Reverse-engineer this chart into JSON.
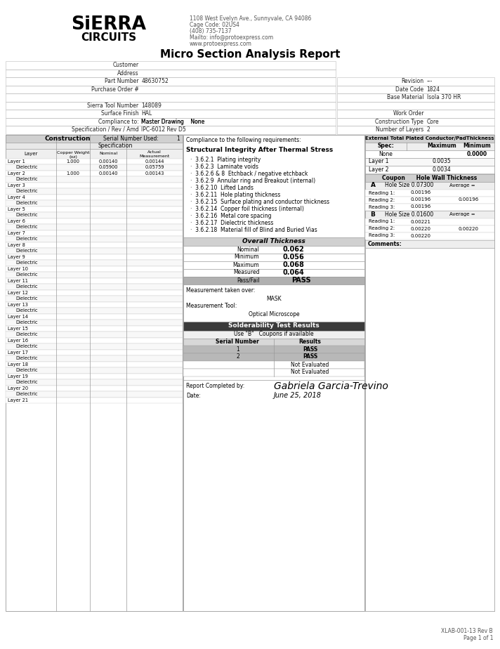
{
  "title": "Micro Section Analysis Report",
  "address_line1": "1108 West Evelyn Ave., Sunnyvale, CA 94086",
  "address_line2": "Cage Code: 02US4",
  "address_line3": "(408) 735-7137",
  "address_line4": "Mailto: info@protoexpress.com",
  "address_line5": "www.protoexpress.com",
  "part_number": "48630752",
  "revision": "---",
  "date_code": "1824",
  "base_material": "Isola 370 HR",
  "sierra_tool_number": "148089",
  "work_order": "",
  "surface_finish": "HAL",
  "construction_type": "Core",
  "compliance_master_drawing": "None",
  "number_of_layers": "2",
  "specification_rev": "IPC-6012 Rev D5",
  "layers": [
    {
      "name": "Layer 1",
      "copper_weight": "1.000",
      "nominal": "0.00140",
      "actual": "0.00144"
    },
    {
      "name": "Dielectric",
      "copper_weight": "",
      "nominal": "0.05900",
      "actual": "0.05759"
    },
    {
      "name": "Layer 2",
      "copper_weight": "1.000",
      "nominal": "0.00140",
      "actual": "0.00143"
    },
    {
      "name": "Dielectric",
      "copper_weight": "",
      "nominal": "",
      "actual": ""
    },
    {
      "name": "Layer 3",
      "copper_weight": "",
      "nominal": "",
      "actual": ""
    },
    {
      "name": "Dielectric",
      "copper_weight": "",
      "nominal": "",
      "actual": ""
    },
    {
      "name": "Layer 4",
      "copper_weight": "",
      "nominal": "",
      "actual": ""
    },
    {
      "name": "Dielectric",
      "copper_weight": "",
      "nominal": "",
      "actual": ""
    },
    {
      "name": "Layer 5",
      "copper_weight": "",
      "nominal": "",
      "actual": ""
    },
    {
      "name": "Dielectric",
      "copper_weight": "",
      "nominal": "",
      "actual": ""
    },
    {
      "name": "Layer 6",
      "copper_weight": "",
      "nominal": "",
      "actual": ""
    },
    {
      "name": "Dielectric",
      "copper_weight": "",
      "nominal": "",
      "actual": ""
    },
    {
      "name": "Layer 7",
      "copper_weight": "",
      "nominal": "",
      "actual": ""
    },
    {
      "name": "Dielectric",
      "copper_weight": "",
      "nominal": "",
      "actual": ""
    },
    {
      "name": "Layer 8",
      "copper_weight": "",
      "nominal": "",
      "actual": ""
    },
    {
      "name": "Dielectric",
      "copper_weight": "",
      "nominal": "",
      "actual": ""
    },
    {
      "name": "Layer 9",
      "copper_weight": "",
      "nominal": "",
      "actual": ""
    },
    {
      "name": "Dielectric",
      "copper_weight": "",
      "nominal": "",
      "actual": ""
    },
    {
      "name": "Layer 10",
      "copper_weight": "",
      "nominal": "",
      "actual": ""
    },
    {
      "name": "Dielectric",
      "copper_weight": "",
      "nominal": "",
      "actual": ""
    },
    {
      "name": "Layer 11",
      "copper_weight": "",
      "nominal": "",
      "actual": ""
    },
    {
      "name": "Dielectric",
      "copper_weight": "",
      "nominal": "",
      "actual": ""
    },
    {
      "name": "Layer 12",
      "copper_weight": "",
      "nominal": "",
      "actual": ""
    },
    {
      "name": "Dielectric",
      "copper_weight": "",
      "nominal": "",
      "actual": ""
    },
    {
      "name": "Layer 13",
      "copper_weight": "",
      "nominal": "",
      "actual": ""
    },
    {
      "name": "Dielectric",
      "copper_weight": "",
      "nominal": "",
      "actual": ""
    },
    {
      "name": "Layer 14",
      "copper_weight": "",
      "nominal": "",
      "actual": ""
    },
    {
      "name": "Dielectric",
      "copper_weight": "",
      "nominal": "",
      "actual": ""
    },
    {
      "name": "Layer 15",
      "copper_weight": "",
      "nominal": "",
      "actual": ""
    },
    {
      "name": "Dielectric",
      "copper_weight": "",
      "nominal": "",
      "actual": ""
    },
    {
      "name": "Layer 16",
      "copper_weight": "",
      "nominal": "",
      "actual": ""
    },
    {
      "name": "Dielectric",
      "copper_weight": "",
      "nominal": "",
      "actual": ""
    },
    {
      "name": "Layer 17",
      "copper_weight": "",
      "nominal": "",
      "actual": ""
    },
    {
      "name": "Dielectric",
      "copper_weight": "",
      "nominal": "",
      "actual": ""
    },
    {
      "name": "Layer 18",
      "copper_weight": "",
      "nominal": "",
      "actual": ""
    },
    {
      "name": "Dielectric",
      "copper_weight": "",
      "nominal": "",
      "actual": ""
    },
    {
      "name": "Layer 19",
      "copper_weight": "",
      "nominal": "",
      "actual": ""
    },
    {
      "name": "Dielectric",
      "copper_weight": "",
      "nominal": "",
      "actual": ""
    },
    {
      "name": "Layer 20",
      "copper_weight": "",
      "nominal": "",
      "actual": ""
    },
    {
      "name": "Dielectric",
      "copper_weight": "",
      "nominal": "",
      "actual": ""
    },
    {
      "name": "Layer 21",
      "copper_weight": "",
      "nominal": "",
      "actual": ""
    }
  ],
  "compliance_text_intro": "Compliance to the following requirements:",
  "compliance_struct_title": "Structural Integrity After Thermal Stress",
  "compliance_items": [
    "3.6.2.1  Plating integrity",
    "3.6.2.3  Laminate voids",
    "3.6.2.6 & 8  Etchback / negative etchback",
    "3.6.2.9  Annular ring and Breakout (internal)",
    "3.6.2.10  Lifted Lands",
    "3.6.2.11  Hole plating thickness",
    "3.6.2.15  Surface plating and conductor thickness",
    "3.6.2.14  Copper foil thickness (internal)",
    "3.6.2.16  Metal core spacing",
    "3.6.2.17  Dielectric thickness",
    "3.6.2.18  Material fill of Blind and Buried Vias"
  ],
  "ext_pad_header": "External Total Plated Conductor/PadThickness",
  "ext_pad_spec_label": "Spec:",
  "ext_pad_max_label": "Maximum",
  "ext_pad_min_label": "Minimum",
  "ext_pad_spec_value": "None",
  "ext_pad_spec_min_value": "0.0000",
  "ext_layer1_value": "0.0035",
  "ext_layer2_value": "0.0034",
  "overall_header": "Overall Thickness",
  "overall_nominal": "0.062",
  "overall_minimum": "0.056",
  "overall_maximum": "0.068",
  "overall_measured": "0.064",
  "overall_pass_fail": "PASS",
  "meas_taken_over_label": "Measurement taken over:",
  "meas_taken_over_value": "MASK",
  "meas_tool_label": "Measurement Tool:",
  "meas_tool_value": "Optical Microscope",
  "coupon_header": "Coupon      Hole Wall Thickness",
  "coupon_a_label": "A",
  "coupon_a_hole": "Hole Size 0.07300",
  "coupon_a_avg_label": "Average =",
  "coupon_a_avg": "0.00196",
  "coupon_a_readings": [
    "0.00196",
    "0.00196",
    "0.00196"
  ],
  "coupon_b_label": "B",
  "coupon_b_hole": "Hole Size 0.01600",
  "coupon_b_avg_label": "Average =",
  "coupon_b_avg": "0.00220",
  "coupon_b_readings": [
    "0.00221",
    "0.00220",
    "0.00220"
  ],
  "comments_label": "Comments:",
  "solderability_header": "Solderability Test Results",
  "solderability_note": "Use \"B\"   Coupons if available",
  "serial_col_header": "Serial Number",
  "results_col_header": "Results",
  "serial_results": [
    {
      "serial": "1",
      "result": "PASS",
      "pass": true
    },
    {
      "serial": "2",
      "result": "PASS",
      "pass": true
    },
    {
      "serial": "",
      "result": "Not Evaluated",
      "pass": false
    },
    {
      "serial": "",
      "result": "Not Evaluated",
      "pass": false
    }
  ],
  "report_completed_by_label": "Report Completed by:",
  "report_completed_by": "Gabriela Garcia-Trevino",
  "date_label": "Date:",
  "date_completed": "June 25, 2018",
  "footer": "XLAB-001-13 Rev B\nPage 1 of 1",
  "bg_color": "#ffffff",
  "gray_header": "#d0d0d0",
  "dark_header_bg": "#3a3a3a",
  "pass_row_bg": "#b8b8b8",
  "light_row": "#f2f2f2",
  "border_color": "#999999"
}
